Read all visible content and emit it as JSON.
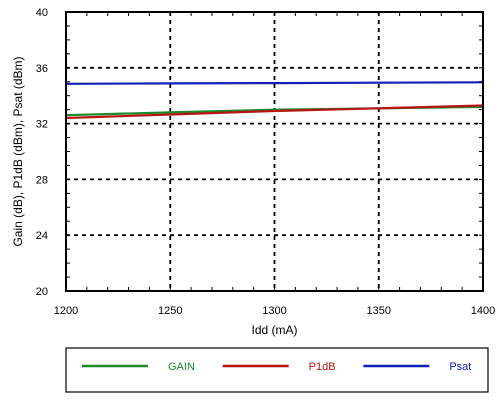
{
  "chart_data": {
    "type": "line",
    "title": "",
    "xlabel": "Idd (mA)",
    "ylabel": "Gain (dB), P1dB (dBm), Psat (dBm)",
    "xlim": [
      1200,
      1400
    ],
    "ylim": [
      20,
      40
    ],
    "x_ticks": [
      1200,
      1250,
      1300,
      1350,
      1400
    ],
    "y_ticks": [
      20,
      24,
      28,
      32,
      36,
      40
    ],
    "x_tick_labels": [
      "1200",
      "1250",
      "1300",
      "1350",
      "1400"
    ],
    "y_tick_labels": [
      "20",
      "24",
      "28",
      "32",
      "36",
      "40"
    ],
    "grid": true,
    "grid_style": "dashed",
    "legend_position": "bottom",
    "x": [
      1200,
      1250,
      1300,
      1350,
      1400
    ],
    "series": [
      {
        "name": "GAIN",
        "color": "#1a8a2a",
        "values": [
          32.6,
          32.8,
          33.0,
          33.1,
          33.2
        ]
      },
      {
        "name": "P1dB",
        "color": "#b81414",
        "values": [
          32.4,
          32.65,
          32.9,
          33.1,
          33.3
        ]
      },
      {
        "name": "Psat",
        "color": "#1020b8",
        "values": [
          34.85,
          34.88,
          34.9,
          34.93,
          34.96
        ]
      }
    ]
  }
}
